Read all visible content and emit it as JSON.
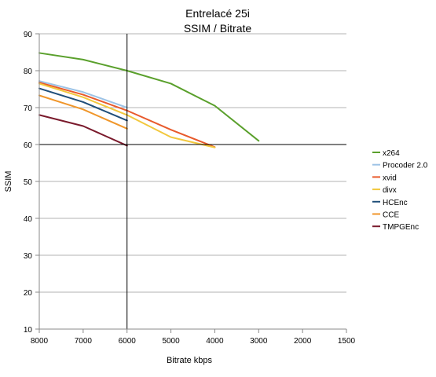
{
  "chart_data": {
    "type": "line",
    "title": "Entrelacé 25i",
    "subtitle": "SSIM / Bitrate",
    "xlabel": "Bitrate kbps",
    "ylabel": "SSIM",
    "x_ticks": [
      "8000",
      "7000",
      "6000",
      "5000",
      "4000",
      "3000",
      "2000",
      "1500"
    ],
    "y_ticks": [
      "10",
      "20",
      "30",
      "40",
      "50",
      "60",
      "70",
      "80",
      "90"
    ],
    "ylim": [
      10,
      90
    ],
    "x_axis": "categorical, decreasing bitrate left to right",
    "grid": "horizontal major gridlines",
    "legend_position": "right",
    "reference_lines": [
      {
        "axis": "x",
        "value": "6000"
      },
      {
        "axis": "y",
        "value": 60
      }
    ],
    "series": [
      {
        "name": "x264",
        "color": "#5aa02c",
        "points": [
          [
            "8000",
            84.8
          ],
          [
            "7000",
            83
          ],
          [
            "6000",
            80
          ],
          [
            "5000",
            76.5
          ],
          [
            "4000",
            70.5
          ],
          [
            "3000",
            61
          ]
        ]
      },
      {
        "name": "Procoder 2.0",
        "color": "#9dc3e6",
        "points": [
          [
            "8000",
            77.2
          ],
          [
            "7000",
            74.2
          ],
          [
            "6000",
            70
          ]
        ]
      },
      {
        "name": "xvid",
        "color": "#e85a2c",
        "points": [
          [
            "8000",
            76.8
          ],
          [
            "7000",
            73.5
          ],
          [
            "6000",
            69.2
          ],
          [
            "5000",
            64
          ],
          [
            "4000",
            59.3
          ]
        ]
      },
      {
        "name": "divx",
        "color": "#f2c83e",
        "points": [
          [
            "8000",
            76.5
          ],
          [
            "7000",
            72.8
          ],
          [
            "6000",
            68
          ],
          [
            "5000",
            62
          ],
          [
            "4000",
            59.2
          ]
        ]
      },
      {
        "name": "HCEnc",
        "color": "#1f4e79",
        "points": [
          [
            "8000",
            75.2
          ],
          [
            "7000",
            71.5
          ],
          [
            "6000",
            66.5
          ]
        ]
      },
      {
        "name": "CCE",
        "color": "#f0962a",
        "points": [
          [
            "8000",
            73.3
          ],
          [
            "7000",
            69.5
          ],
          [
            "6000",
            64.3
          ]
        ]
      },
      {
        "name": "TMPGEnc",
        "color": "#7a1a2c",
        "points": [
          [
            "8000",
            68
          ],
          [
            "7000",
            65
          ],
          [
            "6000",
            59.7
          ]
        ]
      }
    ]
  }
}
